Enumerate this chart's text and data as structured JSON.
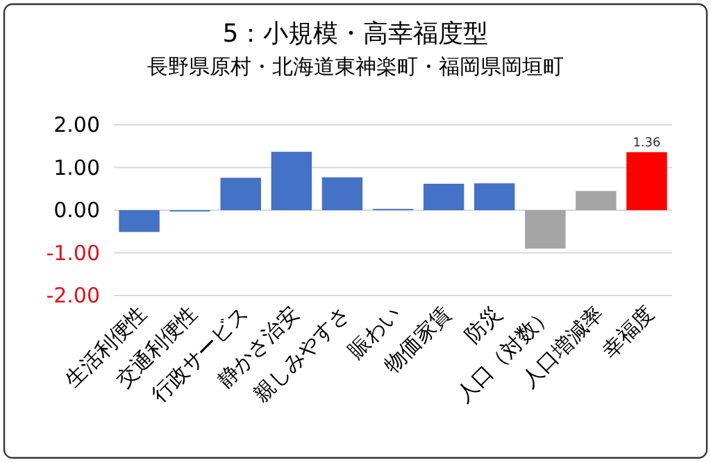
{
  "chart_data": {
    "type": "bar",
    "title": "5：小規模・高幸福度型",
    "subtitle": "長野県原村・北海道東神楽町・福岡県岡垣町",
    "categories": [
      "生活利便性",
      "交通利便性",
      "行政サービス",
      "静かさ治安",
      "親しみやすさ",
      "賑わい",
      "物価家賃",
      "防災",
      "人口（対数）",
      "人口増減率",
      "幸福度"
    ],
    "values": [
      -0.51,
      -0.03,
      0.76,
      1.37,
      0.77,
      0.03,
      0.62,
      0.63,
      -0.9,
      0.45,
      1.36
    ],
    "colors": [
      "#4472c4",
      "#4472c4",
      "#4472c4",
      "#4472c4",
      "#4472c4",
      "#4472c4",
      "#4472c4",
      "#4472c4",
      "#a5a5a5",
      "#a5a5a5",
      "#ff0000"
    ],
    "value_labels": [
      null,
      null,
      null,
      null,
      null,
      null,
      null,
      null,
      null,
      null,
      "1.36"
    ],
    "ylim": [
      -2,
      2
    ],
    "yticks": [
      {
        "value": 2,
        "label": "2.00"
      },
      {
        "value": 1,
        "label": "1.00"
      },
      {
        "value": 0,
        "label": "0.00"
      },
      {
        "value": -1,
        "label": "-1.00"
      },
      {
        "value": -2,
        "label": "-2.00"
      }
    ],
    "grid": "y"
  }
}
